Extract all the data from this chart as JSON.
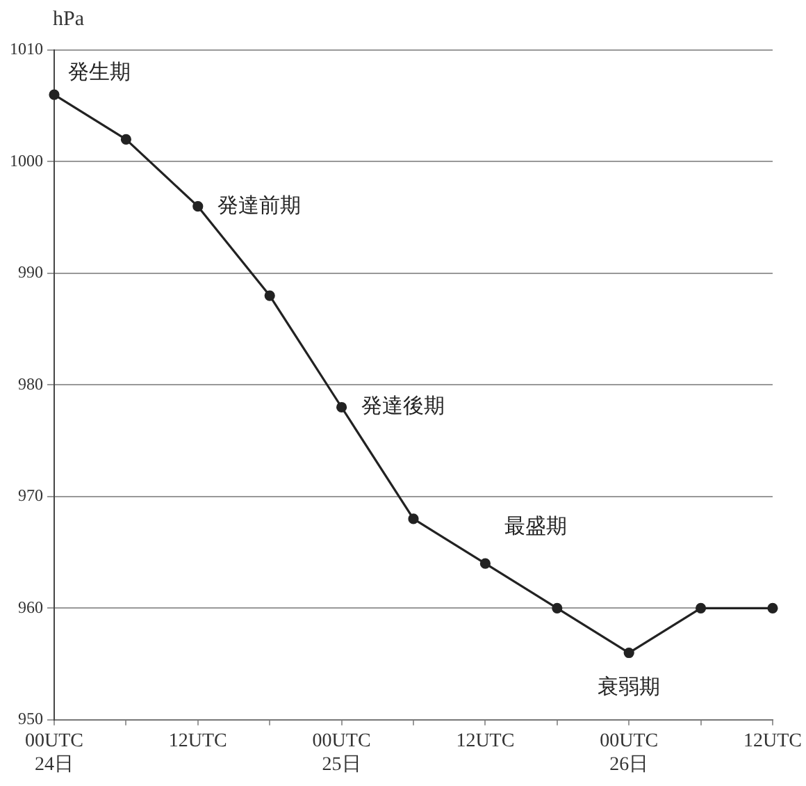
{
  "chart_data": {
    "type": "line",
    "ylabel": "hPa",
    "categories": [
      "00UTC\n24日",
      null,
      "12UTC",
      null,
      "00UTC\n25日",
      null,
      "12UTC",
      null,
      "00UTC\n26日",
      null,
      "12UTC"
    ],
    "series": [
      {
        "color": "#222222",
        "values": [
          1006,
          1002,
          996,
          988,
          978,
          968,
          964,
          960,
          956,
          960,
          960
        ]
      }
    ],
    "ylim": [
      950,
      1010
    ],
    "yticks": [
      950,
      960,
      970,
      980,
      990,
      1000,
      1010
    ],
    "grid": "y",
    "legend": false,
    "marker": "circle",
    "line_style": "solid",
    "annotations": [
      {
        "text": "発生期",
        "x": "00UTC\n24日",
        "y": 1006
      },
      "発達前期",
      {
        "text": "発達後期",
        "x": "00UTC\n25日",
        "y": 978
      },
      "最盛期",
      {
        "text": "衰弱期",
        "x": "00UTC\n26日",
        "y": 956
      }
    ]
  }
}
